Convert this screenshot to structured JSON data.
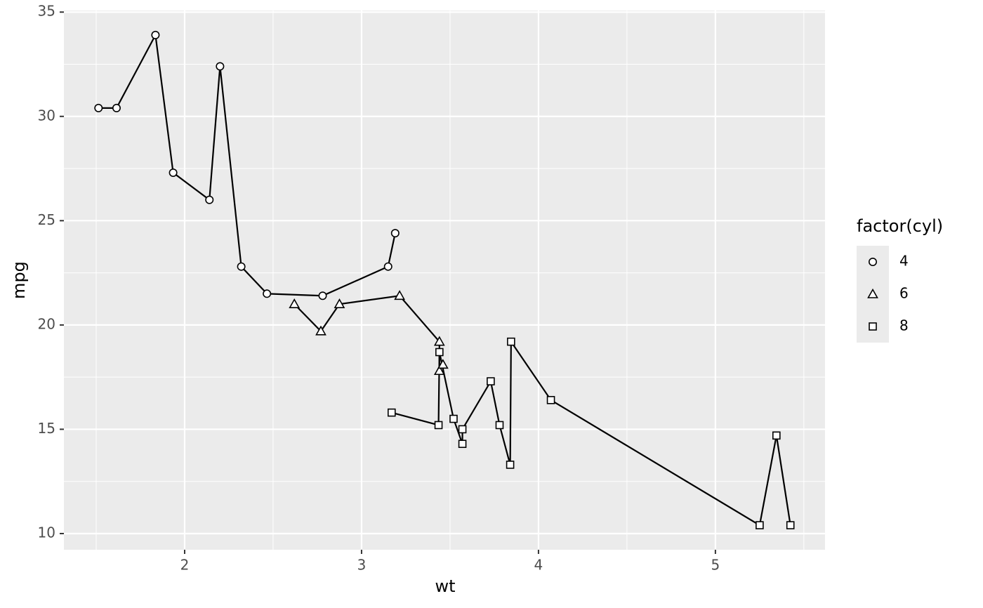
{
  "chart_data": {
    "type": "line",
    "x_label": "wt",
    "y_label": "mpg",
    "legend_title": "factor(cyl)",
    "legend_position": "right",
    "xlim": [
      1.31745,
      5.61955
    ],
    "ylim": [
      9.225,
      35.075
    ],
    "xticks": [
      2,
      3,
      4,
      5
    ],
    "yticks": [
      10,
      15,
      20,
      25,
      30,
      35
    ],
    "grid": true,
    "series": [
      {
        "name": "4",
        "shape": "circle",
        "color": "#000000",
        "x": [
          1.513,
          1.615,
          1.835,
          1.935,
          2.14,
          2.2,
          2.32,
          2.465,
          2.78,
          3.15,
          3.19
        ],
        "values": [
          30.4,
          30.4,
          33.9,
          27.3,
          26.0,
          32.4,
          22.8,
          21.5,
          21.4,
          22.8,
          24.4
        ]
      },
      {
        "name": "6",
        "shape": "triangle",
        "color": "#000000",
        "x": [
          2.62,
          2.77,
          2.875,
          3.215,
          3.44,
          3.44,
          3.46
        ],
        "values": [
          21.0,
          19.7,
          21.0,
          21.4,
          19.2,
          17.8,
          18.1
        ]
      },
      {
        "name": "8",
        "shape": "square",
        "color": "#000000",
        "x": [
          3.17,
          3.435,
          3.44,
          3.52,
          3.57,
          3.57,
          3.73,
          3.78,
          3.84,
          3.845,
          4.07,
          5.25,
          5.345,
          5.424
        ],
        "values": [
          15.8,
          15.2,
          18.7,
          15.5,
          14.3,
          15.0,
          17.3,
          15.2,
          13.3,
          19.2,
          16.4,
          10.4,
          14.7,
          10.4
        ]
      }
    ]
  }
}
